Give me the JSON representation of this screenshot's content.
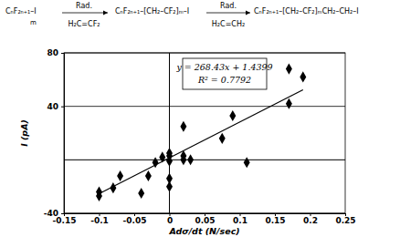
{
  "chart_data": {
    "type": "scatter",
    "scheme": [
      "CₙF₂ₙ₊₁–I",
      "m",
      "Rad.",
      "H₂C=CF₂",
      "CₙF₂ₙ₊₁–[CH₂–CF₂]ₘ–I",
      "Rad.",
      "H₂C=CH₂",
      "CₙF₂ₙ₊₁–[CH₂–CF₂]ₘCH₂–CH₂–I"
    ],
    "x_label": "Adσ/dt (N/sec)",
    "y_label": "I (pA)",
    "x": [
      -0.1,
      -0.1,
      -0.08,
      -0.07,
      -0.04,
      -0.03,
      -0.02,
      -0.01,
      0,
      0,
      0,
      0,
      0,
      0.02,
      0.02,
      0.02,
      0.03,
      0.075,
      0.09,
      0.11,
      0.17,
      0.17,
      0.19
    ],
    "y": [
      -24,
      -27,
      -21,
      -12,
      -25,
      -12,
      -2,
      2,
      -1,
      3,
      5,
      -14,
      -20,
      0,
      3,
      25,
      0,
      16,
      33,
      -2,
      68,
      42,
      62
    ],
    "xlim": [
      -0.15,
      0.25
    ],
    "ylim": [
      -40,
      80
    ],
    "xticks": [
      -0.15,
      -0.1,
      -0.05,
      0,
      0.05,
      0.1,
      0.15,
      0.2,
      0.25
    ],
    "yticks": [
      -40,
      40,
      80
    ],
    "grid": true,
    "marker": "diamond",
    "color": "#000000",
    "trendline": {
      "x": [
        -0.1,
        0.19
      ],
      "y": [
        -25.4,
        52.44
      ]
    },
    "annotations": [
      "y = 268.43x + 1.4399",
      "R² = 0.7792"
    ]
  }
}
